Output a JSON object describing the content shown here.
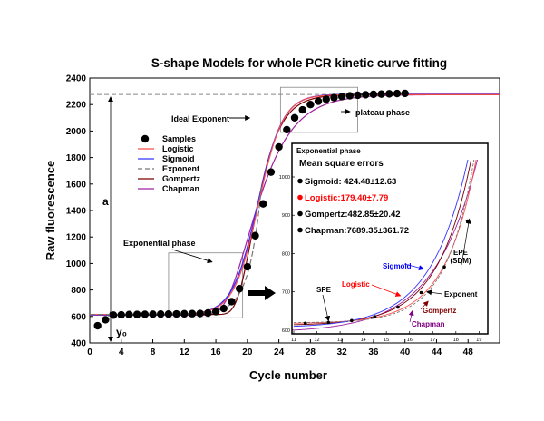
{
  "chart_data": [
    {
      "type": "line",
      "title": "S-shape Models for whole PCR kinetic curve fitting",
      "xlabel": "Cycle number",
      "ylabel": "Raw fluorescence",
      "xlim": [
        0,
        52
      ],
      "ylim": [
        400,
        2400
      ],
      "xticks": [
        0,
        4,
        8,
        12,
        16,
        20,
        24,
        28,
        32,
        36,
        40,
        44,
        48
      ],
      "yticks": [
        400,
        600,
        800,
        1000,
        1200,
        1400,
        1600,
        1800,
        2000,
        2200,
        2400
      ],
      "grid": false,
      "legend_position": "top-left",
      "legend": [
        "Samples",
        "Logistic",
        "Sigmoid",
        "Exponent",
        "Gompertz",
        "Chapman"
      ],
      "samples": {
        "name": "Samples",
        "x": [
          1,
          2,
          3,
          4,
          5,
          6,
          7,
          8,
          9,
          10,
          11,
          12,
          13,
          14,
          15,
          16,
          17,
          18,
          19,
          20,
          21,
          22,
          23,
          24,
          25,
          26,
          27,
          28,
          29,
          30,
          31,
          32,
          33,
          34,
          35,
          36,
          37,
          38,
          39,
          40
        ],
        "y": [
          530,
          575,
          610,
          612,
          614,
          615,
          616,
          617,
          618,
          618,
          619,
          620,
          621,
          622,
          626,
          636,
          660,
          712,
          810,
          975,
          1210,
          1450,
          1690,
          1880,
          2010,
          2100,
          2160,
          2200,
          2225,
          2240,
          2252,
          2260,
          2266,
          2270,
          2274,
          2277,
          2279,
          2281,
          2283,
          2284
        ]
      },
      "series": [
        {
          "name": "Logistic",
          "color": "#ff4d4d"
        },
        {
          "name": "Sigmoid",
          "color": "#3333ff"
        },
        {
          "name": "Exponent",
          "color": "#777777"
        },
        {
          "name": "Gompertz",
          "color": "#7a0000"
        },
        {
          "name": "Chapman",
          "color": "#a020a0"
        }
      ],
      "annotations": {
        "ideal_exponent": "Ideal Exponent",
        "plateau": "plateau phase",
        "exponential": "Exponential phase",
        "a_label": "a",
        "y0_label": "y₀"
      }
    },
    {
      "type": "line",
      "title": "Exponential phase",
      "xlim": [
        11,
        19.3
      ],
      "ylim": [
        595,
        1045
      ],
      "xticks": [
        11,
        12,
        13,
        14,
        15,
        16,
        17,
        18,
        19
      ],
      "yticks": [
        600,
        700,
        800,
        900,
        1000
      ],
      "subtitle": "Mean square errors",
      "mse": [
        {
          "text": "Sigmoid: 424.48±12.63",
          "color": "#000000"
        },
        {
          "text": "Logistic:179.40±7.79",
          "color": "#ff0000"
        },
        {
          "text": "Gompertz:482.85±20.42",
          "color": "#000000"
        },
        {
          "text": "Chapman:7689.35±361.72",
          "color": "#000000"
        }
      ],
      "samples": {
        "x": [
          11.5,
          12.5,
          13.5,
          14.5,
          15.5,
          16.5,
          17.5,
          18.5
        ],
        "y": [
          618,
          620,
          625,
          635,
          660,
          698,
          765,
          885
        ]
      },
      "labels": {
        "sigmoid": "Sigmoid",
        "logistic": "Logistic",
        "exponent": "Exponent",
        "gompertz": "Gompertz",
        "chapman": "Chapman",
        "spe": "SPE",
        "epe": "EPE",
        "sdm": "(SDM)"
      }
    }
  ]
}
